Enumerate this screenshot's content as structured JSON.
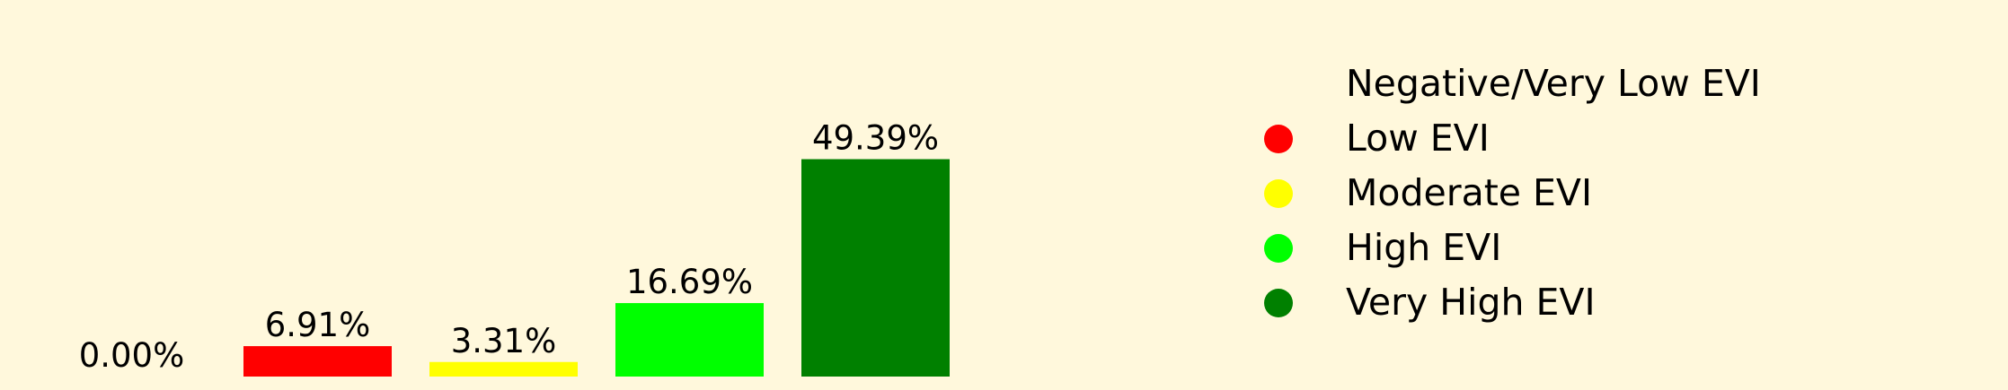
{
  "chart_data": {
    "type": "bar",
    "categories": [
      "Negative/Very Low EVI",
      "Low EVI",
      "Moderate EVI",
      "High EVI",
      "Very High EVI"
    ],
    "values": [
      0.0,
      6.91,
      3.31,
      16.69,
      49.39
    ],
    "value_labels": [
      "0.00%",
      "6.91%",
      "3.31%",
      "16.69%",
      "49.39%"
    ],
    "colors": [
      "#fff8dc",
      "#ff0000",
      "#ffff00",
      "#00ff00",
      "#008000"
    ],
    "ylim": [
      0,
      55
    ],
    "grid": false,
    "axes_visible": false,
    "legend_position": "right",
    "legend": [
      {
        "label": "Negative/Very Low EVI",
        "color": "#fff8dc"
      },
      {
        "label": "Low EVI",
        "color": "#ff0000"
      },
      {
        "label": "Moderate EVI",
        "color": "#ffff00"
      },
      {
        "label": "High EVI",
        "color": "#00ff00"
      },
      {
        "label": "Very High EVI",
        "color": "#008000"
      }
    ]
  }
}
